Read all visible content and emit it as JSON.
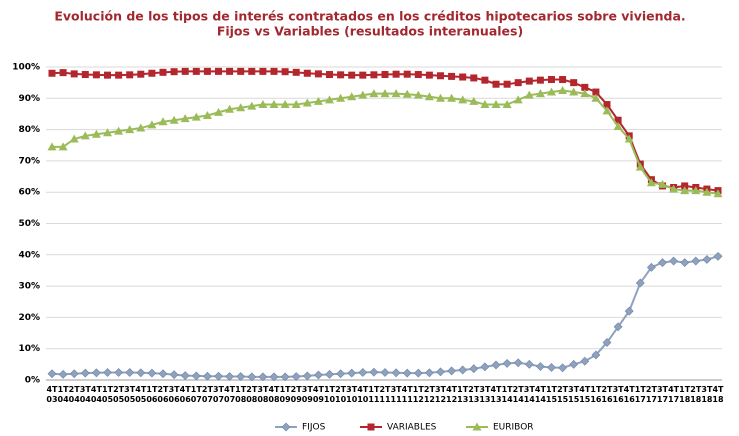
{
  "chart_data": {
    "type": "line",
    "title": "Evolución de los tipos de interés contratados en los créditos hipotecarios sobre vivienda.",
    "subtitle": "Fijos vs Variables (resultados interanuales)",
    "categories": [
      "4T03",
      "1T04",
      "2T04",
      "3T04",
      "4T04",
      "1T05",
      "2T05",
      "3T05",
      "4T05",
      "1T06",
      "2T06",
      "3T06",
      "4T06",
      "1T07",
      "2T07",
      "3T07",
      "4T07",
      "1T08",
      "2T08",
      "3T08",
      "4T08",
      "1T09",
      "2T09",
      "3T09",
      "4T09",
      "1T10",
      "2T10",
      "3T10",
      "4T10",
      "1T11",
      "2T11",
      "3T11",
      "4T11",
      "1T12",
      "2T12",
      "3T12",
      "4T12",
      "1T13",
      "2T13",
      "3T13",
      "4T13",
      "1T14",
      "2T14",
      "3T14",
      "4T14",
      "1T15",
      "2T15",
      "3T15",
      "4T15",
      "1T16",
      "2T16",
      "3T16",
      "4T16",
      "1T17",
      "2T17",
      "3T17",
      "4T17",
      "1T18",
      "2T18",
      "3T18",
      "4T18"
    ],
    "series": [
      {
        "name": "FIJOS",
        "color": "#8ea2bf",
        "marker": "diamond",
        "values": [
          2.0,
          1.8,
          2.0,
          2.2,
          2.3,
          2.4,
          2.4,
          2.4,
          2.3,
          2.2,
          2.0,
          1.7,
          1.4,
          1.3,
          1.2,
          1.2,
          1.1,
          1.1,
          1.0,
          1.0,
          1.0,
          1.0,
          1.1,
          1.3,
          1.6,
          1.8,
          2.0,
          2.2,
          2.4,
          2.5,
          2.4,
          2.3,
          2.2,
          2.2,
          2.3,
          2.6,
          2.9,
          3.2,
          3.6,
          4.2,
          4.8,
          5.3,
          5.5,
          5.0,
          4.3,
          4.0,
          3.9,
          5.0,
          6.0,
          8.0,
          12.0,
          17.0,
          22.0,
          31.0,
          36.0,
          37.5,
          38.0,
          37.5,
          38.0,
          38.5,
          39.5
        ]
      },
      {
        "name": "VARIABLES",
        "color": "#b3262e",
        "marker": "square",
        "values": [
          98,
          98.2,
          97.8,
          97.6,
          97.5,
          97.4,
          97.4,
          97.5,
          97.7,
          98,
          98.3,
          98.5,
          98.6,
          98.6,
          98.6,
          98.6,
          98.6,
          98.6,
          98.6,
          98.6,
          98.6,
          98.5,
          98.3,
          98,
          97.8,
          97.6,
          97.5,
          97.4,
          97.4,
          97.5,
          97.6,
          97.7,
          97.7,
          97.6,
          97.4,
          97.2,
          97,
          96.8,
          96.5,
          95.8,
          94.5,
          94.5,
          95,
          95.5,
          95.8,
          96,
          96,
          95,
          93.5,
          92,
          88,
          83,
          78,
          69,
          64,
          62,
          61.5,
          62,
          61.5,
          61,
          60.5
        ]
      },
      {
        "name": "EURIBOR",
        "color": "#9bbb59",
        "marker": "triangle",
        "values": [
          74.5,
          74.5,
          77,
          78,
          78.5,
          79,
          79.5,
          80,
          80.5,
          81.5,
          82.5,
          83,
          83.5,
          84,
          84.5,
          85.5,
          86.5,
          87,
          87.5,
          88,
          88,
          88,
          88,
          88.5,
          89,
          89.5,
          90,
          90.5,
          91,
          91.5,
          91.5,
          91.5,
          91.3,
          91,
          90.5,
          90,
          90,
          89.5,
          89,
          88,
          88,
          88,
          89.5,
          91,
          91.5,
          92,
          92.5,
          92,
          91.5,
          90,
          86,
          81,
          77,
          68,
          63,
          62.5,
          61,
          60.5,
          60.5,
          60,
          59.5
        ]
      }
    ],
    "ylim": [
      0,
      100
    ],
    "yticks": [
      {
        "value": 0,
        "label": "0%"
      },
      {
        "value": 10,
        "label": "10%"
      },
      {
        "value": 20,
        "label": "20%"
      },
      {
        "value": 30,
        "label": "30%"
      },
      {
        "value": 40,
        "label": "40%"
      },
      {
        "value": 50,
        "label": "50%"
      },
      {
        "value": 60,
        "label": "60%"
      },
      {
        "value": 70,
        "label": "70%"
      },
      {
        "value": 80,
        "label": "80%"
      },
      {
        "value": 90,
        "label": "90%"
      },
      {
        "value": 100,
        "label": "100%"
      }
    ],
    "grid": true,
    "legend": "bottom"
  }
}
